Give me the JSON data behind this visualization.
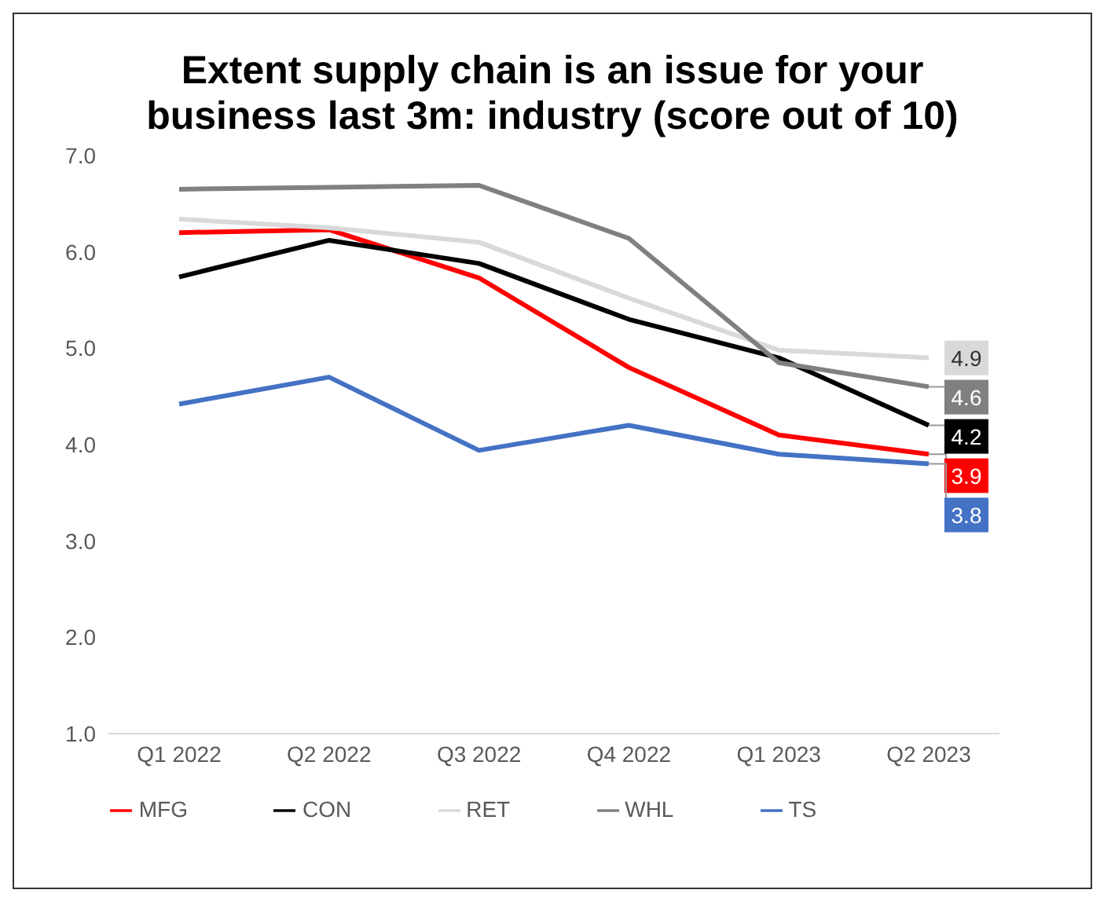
{
  "chart_data": {
    "type": "line",
    "title": "Extent supply chain is an issue for your business last 3m: industry (score out of 10)",
    "categories": [
      "Q1 2022",
      "Q2 2022",
      "Q3 2022",
      "Q4 2022",
      "Q1 2023",
      "Q2 2023"
    ],
    "series": [
      {
        "name": "MFG",
        "color": "#ff0000",
        "values": [
          6.2,
          6.23,
          5.73,
          4.8,
          4.1,
          3.9
        ],
        "value_labels": [
          null,
          null,
          null,
          null,
          null,
          "3.9"
        ]
      },
      {
        "name": "CON",
        "color": "#000000",
        "values": [
          5.74,
          6.12,
          5.88,
          5.3,
          4.9,
          4.2
        ],
        "value_labels": [
          null,
          null,
          null,
          null,
          null,
          "4.2"
        ]
      },
      {
        "name": "RET",
        "color": "#d9d9d9",
        "values": [
          6.34,
          6.25,
          6.1,
          5.52,
          4.98,
          4.9
        ],
        "value_labels": [
          null,
          null,
          null,
          null,
          null,
          "4.9"
        ]
      },
      {
        "name": "WHL",
        "color": "#808080",
        "values": [
          6.65,
          6.67,
          6.69,
          6.14,
          4.85,
          4.6
        ],
        "value_labels": [
          null,
          null,
          null,
          null,
          null,
          "4.6"
        ]
      },
      {
        "name": "TS",
        "color": "#4472c4",
        "values": [
          4.42,
          4.7,
          3.94,
          4.2,
          3.9,
          3.8
        ],
        "value_labels": [
          null,
          null,
          null,
          null,
          null,
          "3.8"
        ]
      }
    ],
    "ylim": [
      1,
      7
    ],
    "yticks": [
      {
        "value": 1,
        "label": "1.0"
      },
      {
        "value": 2,
        "label": "2.0"
      },
      {
        "value": 3,
        "label": "3.0"
      },
      {
        "value": 4,
        "label": "4.0"
      },
      {
        "value": 5,
        "label": "5.0"
      },
      {
        "value": 6,
        "label": "6.0"
      },
      {
        "value": 7,
        "label": "7.0"
      }
    ],
    "grid": false,
    "legend": "bottom",
    "marker": "none",
    "line_style": "solid"
  }
}
